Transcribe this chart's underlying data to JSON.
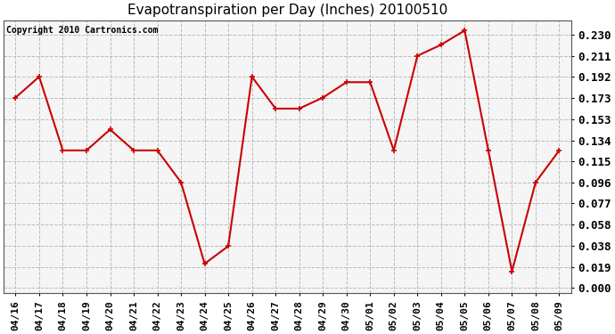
{
  "title": "Evapotranspiration per Day (Inches) 20100510",
  "copyright_text": "Copyright 2010 Cartronics.com",
  "x_labels": [
    "04/16",
    "04/17",
    "04/18",
    "04/19",
    "04/20",
    "04/21",
    "04/22",
    "04/23",
    "04/24",
    "04/25",
    "04/26",
    "04/27",
    "04/28",
    "04/29",
    "04/30",
    "05/01",
    "05/02",
    "05/03",
    "05/04",
    "05/05",
    "05/06",
    "05/07",
    "05/08",
    "05/09"
  ],
  "y_values": [
    0.173,
    0.192,
    0.125,
    0.125,
    0.144,
    0.125,
    0.125,
    0.096,
    0.022,
    0.038,
    0.192,
    0.163,
    0.163,
    0.173,
    0.187,
    0.187,
    0.125,
    0.211,
    0.221,
    0.234,
    0.125,
    0.015,
    0.096,
    0.125
  ],
  "line_color": "#cc0000",
  "marker": "+",
  "marker_size": 5,
  "marker_linewidth": 1.2,
  "y_ticks": [
    0.0,
    0.019,
    0.038,
    0.058,
    0.077,
    0.096,
    0.115,
    0.134,
    0.153,
    0.173,
    0.192,
    0.211,
    0.23
  ],
  "ylim": [
    -0.005,
    0.243
  ],
  "bg_color": "#ffffff",
  "plot_bg_color": "#f5f5f5",
  "grid_color": "#bbbbbb",
  "title_fontsize": 11,
  "tick_fontsize": 8,
  "copyright_fontsize": 7,
  "linewidth": 1.5
}
